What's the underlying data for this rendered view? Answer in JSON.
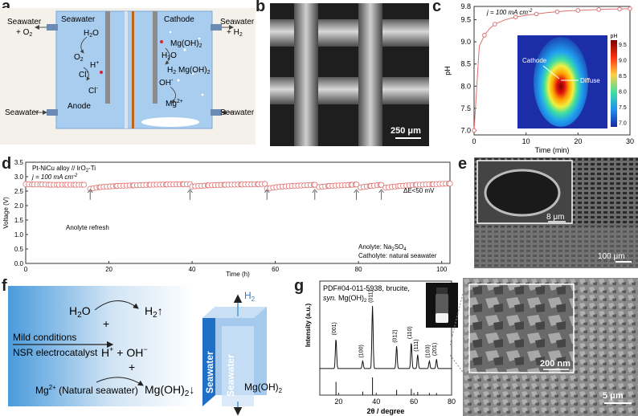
{
  "panel_labels": {
    "a": "a",
    "b": "b",
    "c": "c",
    "d": "d",
    "e": "e",
    "f": "f",
    "g": "g"
  },
  "panel_a": {
    "left_chamber": "Seawater",
    "right_chamber": "Cathode",
    "outlet_left_1": "Seawater",
    "outlet_left_2": "+ O",
    "outlet_left_2_sub": "2",
    "outlet_right_1": "Seawater",
    "outlet_right_2": "+ H",
    "outlet_right_2_sub": "2",
    "inlet_left": "Seawater",
    "inlet_right": "Seawater",
    "anode": "Anode",
    "h2o_left": "H",
    "o2": "O",
    "hplus": "H",
    "cl1": "Cl",
    "cl2": "Cl",
    "mgoh2_1": "Mg(OH)",
    "h2o_right": "H",
    "h2_right": "H",
    "mgoh2_2": "Mg(OH)",
    "oh": "OH",
    "mg2": "Mg",
    "sub2": "2",
    "sup_plus": "+",
    "sup_minus": "-",
    "sup_2plus": "2+",
    "o_letter": "O"
  },
  "panel_b": {
    "scale": "250 μm"
  },
  "panel_c": {
    "annotation": "j = 100 mA cm",
    "annotation_sup": "-2",
    "inset_cathode": "Cathode",
    "inset_diffuse": "Diffuse",
    "colorbar_title": "pH",
    "colorbar_ticks": [
      "9.5",
      "9.0",
      "8.5",
      "8.0",
      "7.5",
      "7.0"
    ],
    "chart_data": {
      "type": "line",
      "xlabel": "Time (min)",
      "ylabel": "pH",
      "xlim": [
        0,
        30
      ],
      "ylim": [
        6.9,
        9.8
      ],
      "xticks": [
        0,
        10,
        20,
        30
      ],
      "yticks": [
        "7.0",
        "7.5",
        "8.0",
        "8.5",
        "9.0",
        "9.5",
        "9.8"
      ],
      "x": [
        0,
        1,
        2,
        3,
        4,
        6,
        8,
        10,
        12,
        14,
        16,
        18,
        20,
        22,
        24,
        26,
        28,
        30
      ],
      "y": [
        7.0,
        8.9,
        9.15,
        9.3,
        9.4,
        9.5,
        9.56,
        9.6,
        9.63,
        9.66,
        9.68,
        9.7,
        9.71,
        9.72,
        9.73,
        9.74,
        9.74,
        9.75
      ]
    }
  },
  "panel_d": {
    "title1": "Pt-NiCu alloy // IrO",
    "title1_sub": "2",
    "title1_end": "-Ti",
    "title2": "j = 100 mA cm",
    "title2_sup": "-2",
    "delta": "ΔE<50 mV",
    "refresh": "Anolyte refresh",
    "anolyte": "Anolyte: Na",
    "anolyte_sub1": "2",
    "anolyte_mid": "SO",
    "anolyte_sub2": "4",
    "catholyte": "Catholyte: natural seawater",
    "chart_data": {
      "type": "scatter",
      "xlabel": "Time (h)",
      "ylabel": "Voltage (V)",
      "xlim": [
        0,
        102
      ],
      "ylim": [
        0,
        3.5
      ],
      "xticks": [
        0,
        20,
        40,
        60,
        80,
        100
      ],
      "yticks": [
        "0.0",
        "0.5",
        "1.0",
        "1.5",
        "2.0",
        "2.5",
        "3.0",
        "3.5"
      ],
      "segments": [
        {
          "x": [
            0,
            2,
            4,
            6,
            8,
            10,
            12,
            14
          ],
          "y": [
            2.74,
            2.73,
            2.73,
            2.72,
            2.72,
            2.72,
            2.72,
            2.72
          ]
        },
        {
          "x": [
            15.5,
            18,
            22,
            26,
            30,
            34,
            38,
            39.5
          ],
          "y": [
            2.58,
            2.64,
            2.68,
            2.7,
            2.72,
            2.73,
            2.74,
            2.74
          ]
        },
        {
          "x": [
            40,
            44,
            48,
            52,
            56,
            57.5
          ],
          "y": [
            2.66,
            2.7,
            2.72,
            2.73,
            2.74,
            2.75
          ]
        },
        {
          "x": [
            58,
            61,
            64,
            67,
            69.5
          ],
          "y": [
            2.59,
            2.65,
            2.68,
            2.7,
            2.72
          ]
        },
        {
          "x": [
            70.5,
            73,
            76,
            78.5,
            79.5
          ],
          "y": [
            2.64,
            2.68,
            2.7,
            2.72,
            2.73
          ]
        },
        {
          "x": [
            80.5,
            83,
            85.5
          ],
          "y": [
            2.63,
            2.68,
            2.72
          ]
        },
        {
          "x": [
            86.5,
            90,
            94,
            98,
            102
          ],
          "y": [
            2.62,
            2.68,
            2.72,
            2.74,
            2.76
          ]
        }
      ],
      "refresh_arrows_x": [
        15.5,
        39.5,
        58,
        69.5,
        79.5,
        85.5
      ]
    }
  },
  "panel_e": {
    "inset_scale": "8 μm",
    "scale": "100 μm"
  },
  "panel_f": {
    "h2o": "H",
    "h2o_sub": "2",
    "h2o_end": "O",
    "h2": "H",
    "h2_sub": "2",
    "h2_arrow": "↑",
    "plus_top": "+",
    "mild": "Mild conditions",
    "nsr": "NSR electrocatalyst",
    "ions": "H",
    "ions_sup1": "+",
    "ions_mid": " + OH",
    "ions_sup2": "−",
    "plus_bottom": "+",
    "mg": "Mg",
    "mg_sup": "2+",
    "mg_end": " (Natural seawater)",
    "mgoh2": "Mg(OH)",
    "mgoh2_sub": "2",
    "mgoh2_arrow": "↓",
    "cube_h2": "H",
    "cube_h2_sub": "2",
    "cube_seawater1": "Seawater",
    "cube_seawater2": "Seawater",
    "cube_mgoh2": "Mg(OH)",
    "cube_mgoh2_sub": "2"
  },
  "panel_g": {
    "pdf": "PDF#04-011-5938, brucite,",
    "syn": "syn.",
    "syn_end": " Mg(OH)",
    "syn_sub": "2",
    "inset_scale": "200 nm",
    "scale": "5 μm",
    "chart_data": {
      "type": "line",
      "xlabel": "2θ / degree",
      "ylabel": "Intensity (a.u.)",
      "xlim": [
        10,
        80
      ],
      "xticks": [
        20,
        40,
        60,
        80
      ],
      "peaks": [
        {
          "x": 18.6,
          "label": "(001)",
          "h": 0.48
        },
        {
          "x": 32.8,
          "label": "(100)",
          "h": 0.12
        },
        {
          "x": 38.0,
          "label": "(011)",
          "h": 1.0
        },
        {
          "x": 50.8,
          "label": "(012)",
          "h": 0.36
        },
        {
          "x": 58.6,
          "label": "(110)",
          "h": 0.42
        },
        {
          "x": 62.0,
          "label": "(111)",
          "h": 0.22
        },
        {
          "x": 68.2,
          "label": "(103)",
          "h": 0.12
        },
        {
          "x": 72.0,
          "label": "(201)",
          "h": 0.15
        }
      ],
      "ref_lines": [
        {
          "x": 18.6,
          "h": 0.75
        },
        {
          "x": 32.8,
          "h": 0.2
        },
        {
          "x": 38.0,
          "h": 1.0
        },
        {
          "x": 50.8,
          "h": 0.3
        },
        {
          "x": 58.6,
          "h": 0.35
        },
        {
          "x": 62.0,
          "h": 0.18
        },
        {
          "x": 68.2,
          "h": 0.12
        },
        {
          "x": 72.0,
          "h": 0.12
        }
      ]
    }
  }
}
